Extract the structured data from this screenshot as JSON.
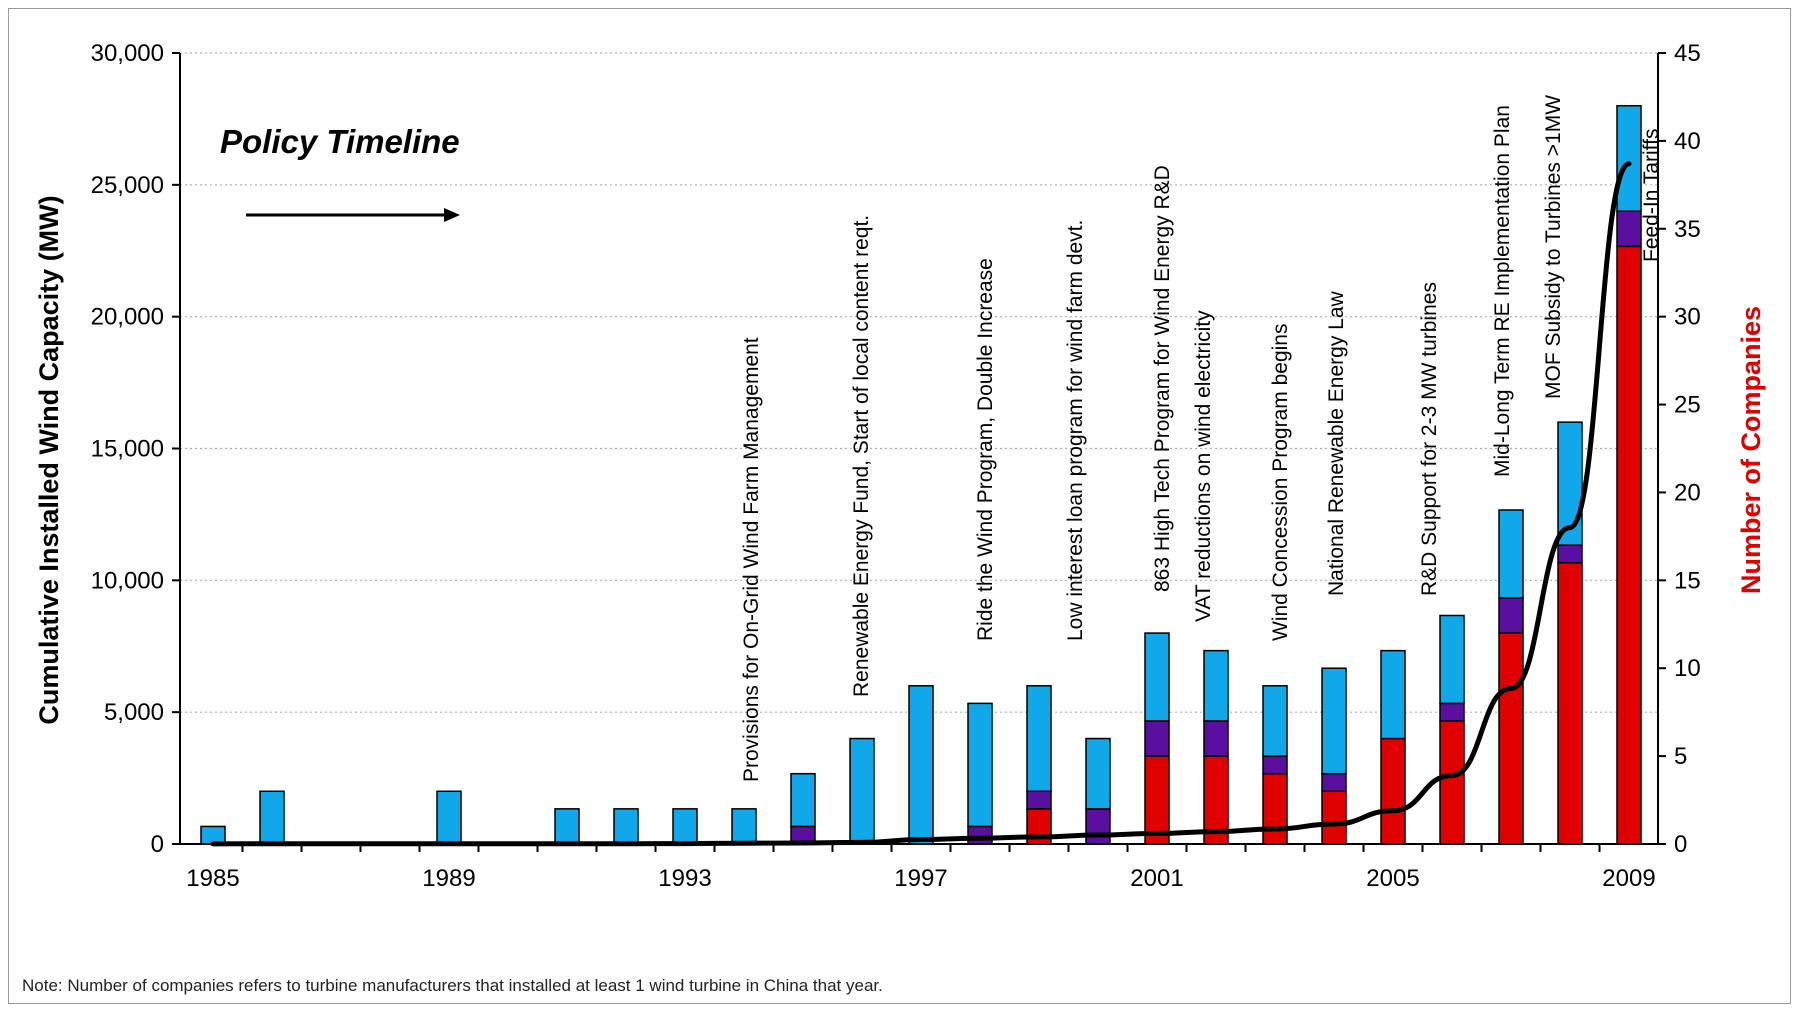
{
  "chart_data": {
    "type": "bar",
    "subtype": "stacked bar with line overlay, dual y-axis",
    "x_ticks": [
      "1985",
      "1989",
      "1993",
      "1997",
      "2001",
      "2005",
      "2009"
    ],
    "years": [
      1985,
      1986,
      1987,
      1988,
      1989,
      1990,
      1991,
      1992,
      1993,
      1994,
      1995,
      1996,
      1997,
      1998,
      1999,
      2000,
      2001,
      2002,
      2003,
      2004,
      2005,
      2006,
      2007,
      2008,
      2009
    ],
    "y_left": {
      "label": "Cumulative Installed Wind Capacity (MW)",
      "range": [
        0,
        30000
      ],
      "ticks": [
        "0",
        "5,000",
        "10,000",
        "15,000",
        "20,000",
        "25,000",
        "30,000"
      ]
    },
    "y_right": {
      "label": "Number of Companies",
      "label_color": "#e00000",
      "range": [
        0,
        45
      ],
      "ticks": [
        "0",
        "5",
        "10",
        "15",
        "20",
        "25",
        "30",
        "35",
        "40",
        "45"
      ]
    },
    "series": [
      {
        "color": "#e00000",
        "axis": "right",
        "type": "stacked-bar",
        "values": [
          0,
          0,
          0,
          0,
          0,
          0,
          0,
          0,
          0,
          0,
          0,
          0,
          0,
          0,
          2,
          0,
          5,
          5,
          4,
          3,
          6,
          7,
          12,
          16,
          34
        ]
      },
      {
        "color": "#5a0fa0",
        "axis": "right",
        "type": "stacked-bar",
        "values": [
          0,
          0,
          0,
          0,
          0,
          0,
          0,
          0,
          0,
          0,
          1,
          0,
          0,
          1,
          1,
          2,
          2,
          2,
          1,
          1,
          0,
          1,
          2,
          1,
          2
        ]
      },
      {
        "color": "#10a8e8",
        "axis": "right",
        "type": "stacked-bar",
        "values": [
          1,
          3,
          0,
          0,
          3,
          0,
          2,
          2,
          2,
          2,
          3,
          6,
          9,
          7,
          6,
          4,
          5,
          4,
          4,
          6,
          5,
          5,
          5,
          7,
          6
        ]
      },
      {
        "color": "#000000",
        "axis": "left",
        "type": "line",
        "values": [
          5,
          10,
          10,
          10,
          10,
          10,
          10,
          10,
          15,
          30,
          40,
          60,
          170,
          220,
          270,
          340,
          400,
          470,
          570,
          760,
          1260,
          2600,
          5900,
          12000,
          25800
        ]
      }
    ],
    "policy_title": "Policy Timeline",
    "policies": [
      {
        "year": 1994,
        "text": "Provisions for On-Grid Wind Farm Management"
      },
      {
        "year": 1996,
        "text": "Renewable Energy Fund, Start of local content reqt."
      },
      {
        "year": 1998,
        "text": "Ride the Wind Program, Double Increase"
      },
      {
        "year": 2000,
        "text": "Low interest loan program for wind farm devt."
      },
      {
        "year": 2001,
        "text": "863 High Tech Program for Wind Energy R&D"
      },
      {
        "year": 2002,
        "text": "VAT reductions on wind electricity"
      },
      {
        "year": 2003,
        "text": "Wind Concession Program begins"
      },
      {
        "year": 2005,
        "text": "National Renewable Energy Law"
      },
      {
        "year": 2006,
        "text": "R&D Support for 2-3 MW turbines"
      },
      {
        "year": 2007,
        "text": "Mid-Long Term RE Implementation Plan"
      },
      {
        "year": 2008,
        "text": "MOF Subsidy to Turbines >1MW"
      },
      {
        "year": 2009,
        "text": "Feed-In Tariffs"
      }
    ],
    "note": "Note: Number of companies refers to turbine manufacturers that installed at least 1 wind turbine in China that year.",
    "grid": "horizontal dotted",
    "legend": "none"
  }
}
